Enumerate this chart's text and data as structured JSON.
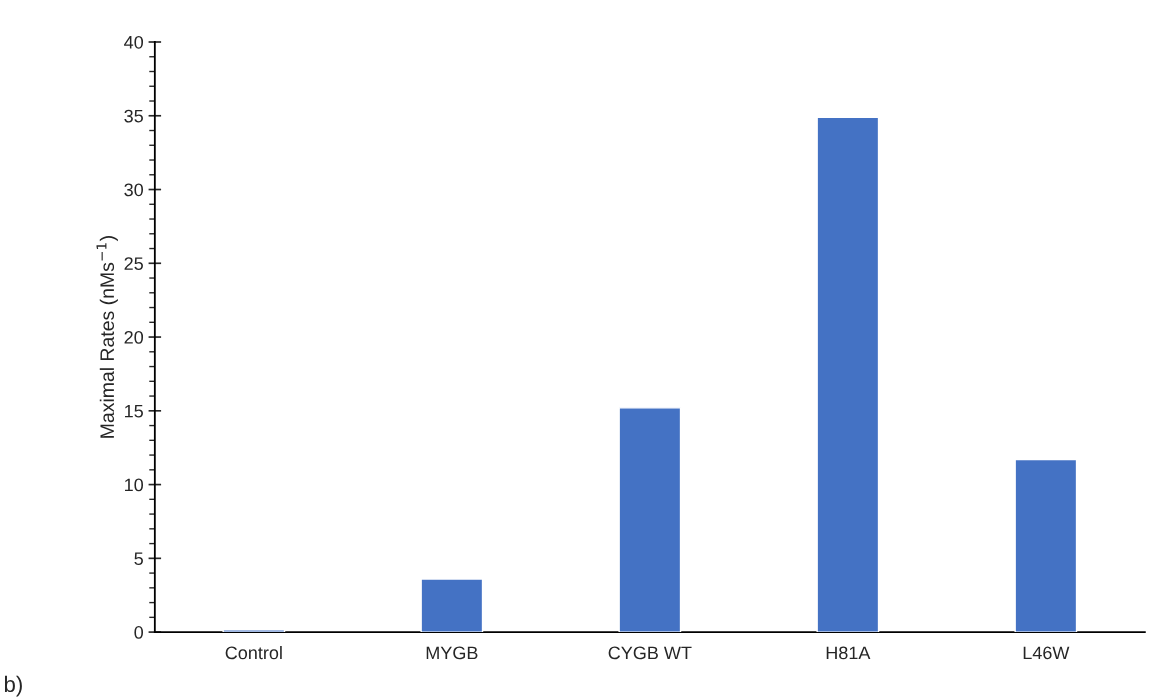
{
  "chart_data": {
    "type": "bar",
    "ylabel": "Maximal Rates (nMs$^{−1}$)",
    "categories": [
      "Control",
      "MYGB",
      "CYGB WT",
      "H81A",
      "L46W"
    ],
    "values": [
      0.15,
      3.6,
      15.2,
      34.9,
      11.7
    ],
    "color": "#4472c4",
    "ylim": [
      0,
      40
    ],
    "yticks": [
      0,
      5,
      10,
      15,
      20,
      25,
      30,
      35,
      40
    ],
    "grid": false,
    "legend": false,
    "annotations": [
      "b)"
    ]
  }
}
